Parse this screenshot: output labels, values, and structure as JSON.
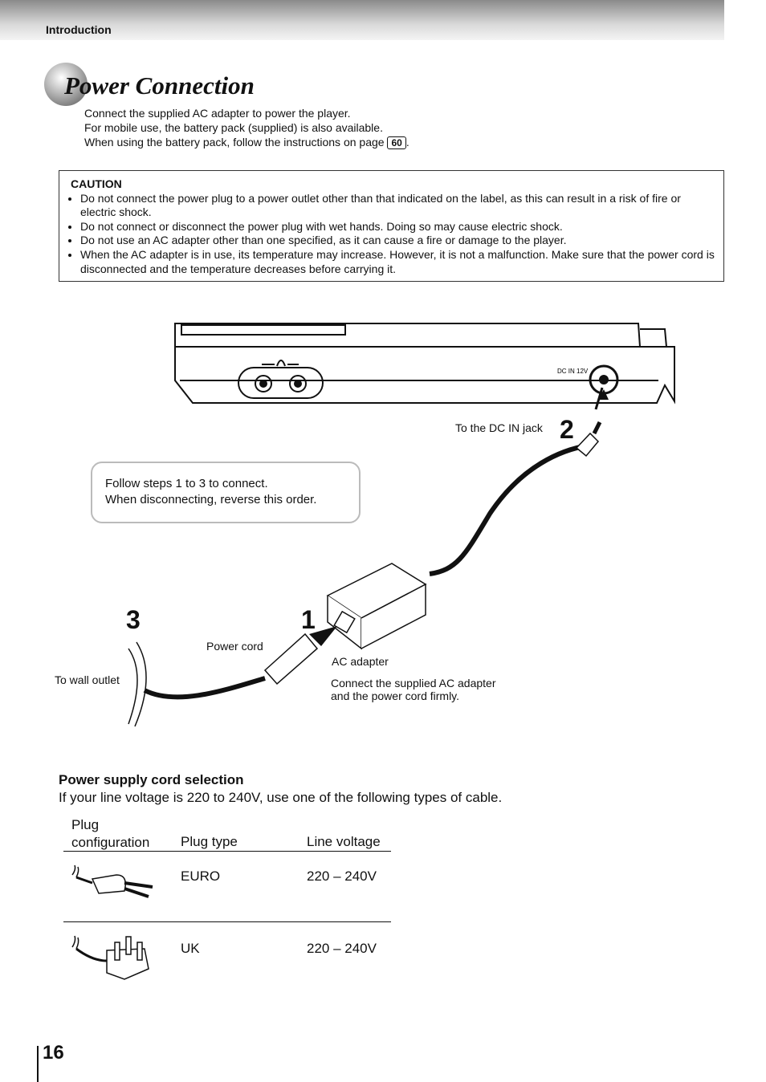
{
  "header": {
    "section": "Introduction"
  },
  "title": "Power Connection",
  "intro": {
    "lines": [
      "Connect the supplied AC adapter to power the player.",
      "For mobile use, the battery pack (supplied) is also available."
    ],
    "page_ref_before": "When using the battery pack, follow the instructions on page",
    "page_ref": "60",
    "page_ref_after": "."
  },
  "caution": {
    "heading": "CAUTION",
    "items": [
      "Do not connect the power plug to a power outlet other than that indicated on the label, as this can result in a risk of fire or electric shock.",
      "Do not connect or disconnect the power plug with wet hands. Doing so may cause electric shock.",
      "Do not use an AC adapter other than one specified, as it can cause a fire or damage to the player.",
      "When the AC adapter is in use, its temperature may increase. However, it is not a malfunction. Make sure that the power cord is disconnected and the temperature decreases before carrying it."
    ]
  },
  "diagram": {
    "device_jack_label": "DC IN 12V",
    "dc_jack_label": "To the DC IN jack",
    "note": [
      "Follow steps 1 to 3 to connect.",
      "When disconnecting, reverse this order."
    ],
    "steps": [
      "1",
      "2",
      "3"
    ],
    "power_cord_label": "Power cord",
    "ac_adapter_label": "AC adapter",
    "wall_outlet_label": "To wall outlet",
    "connect_note": [
      "Connect the supplied AC adapter",
      "and the power cord firmly."
    ]
  },
  "cord_selection": {
    "heading": "Power supply cord selection",
    "text": "If your line voltage is 220 to 240V, use one of the following types of cable.",
    "columns": [
      "Plug configuration",
      "Plug type",
      "Line voltage"
    ],
    "rows": [
      [
        "EURO",
        "220 – 240V"
      ],
      [
        "UK",
        "220 – 240V"
      ]
    ]
  },
  "page_number": "16"
}
